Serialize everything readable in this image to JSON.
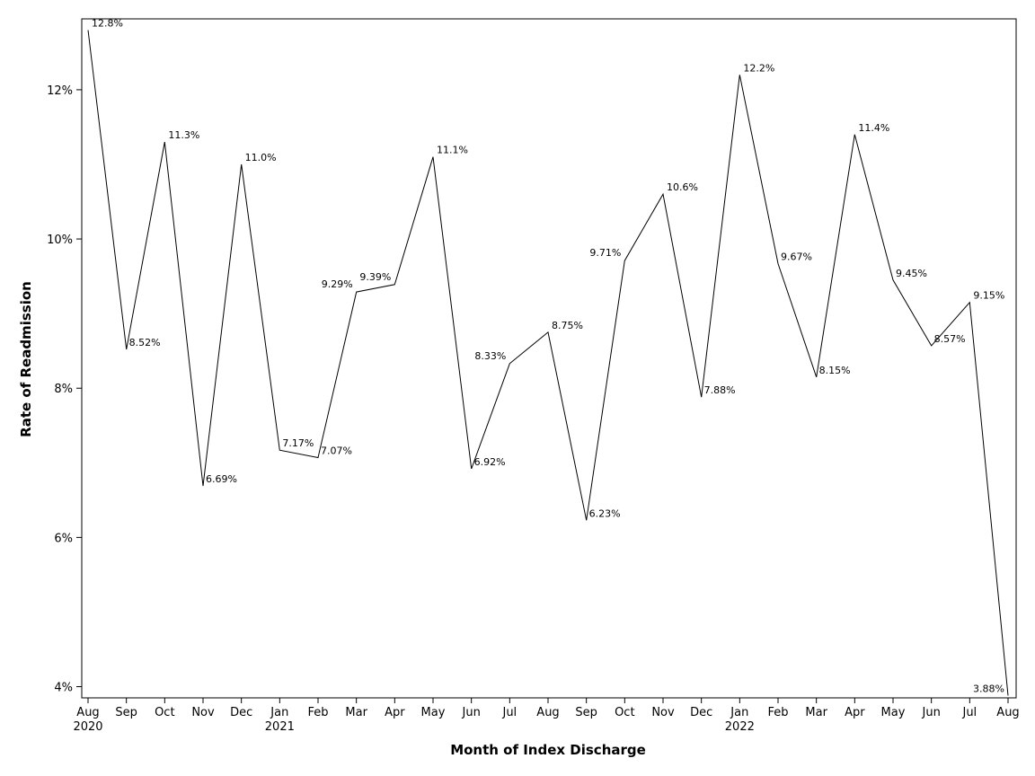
{
  "chart_data": {
    "type": "line",
    "xlabel": "Month of Index Discharge",
    "ylabel": "Rate of Readmission",
    "ylim": [
      3.85,
      12.95
    ],
    "yticks": [
      4,
      6,
      8,
      10,
      12
    ],
    "ytick_labels": [
      "4%",
      "6%",
      "8%",
      "10%",
      "12%"
    ],
    "grid": false,
    "legend": "none",
    "line_color": "#000000",
    "x": [
      "2020-08",
      "2020-09",
      "2020-10",
      "2020-11",
      "2020-12",
      "2021-01",
      "2021-02",
      "2021-03",
      "2021-04",
      "2021-05",
      "2021-06",
      "2021-07",
      "2021-08",
      "2021-09",
      "2021-10",
      "2021-11",
      "2021-12",
      "2022-01",
      "2022-02",
      "2022-03",
      "2022-04",
      "2022-05",
      "2022-06",
      "2022-07",
      "2022-08"
    ],
    "x_tick_labels": [
      "Aug",
      "Sep",
      "Oct",
      "Nov",
      "Dec",
      "Jan",
      "Feb",
      "Mar",
      "Apr",
      "May",
      "Jun",
      "Jul",
      "Aug",
      "Sep",
      "Oct",
      "Nov",
      "Dec",
      "Jan",
      "Feb",
      "Mar",
      "Apr",
      "May",
      "Jun",
      "Jul",
      "Aug"
    ],
    "x_year_labels": [
      "2020",
      "",
      "",
      "",
      "",
      "2021",
      "",
      "",
      "",
      "",
      "",
      "",
      "",
      "",
      "",
      "",
      "",
      "2022",
      "",
      "",
      "",
      "",
      "",
      "",
      ""
    ],
    "values": [
      12.8,
      8.52,
      11.3,
      6.69,
      11.0,
      7.17,
      7.07,
      9.29,
      9.39,
      11.1,
      6.92,
      8.33,
      8.75,
      6.23,
      9.71,
      10.6,
      7.88,
      12.2,
      9.67,
      8.15,
      11.4,
      9.45,
      8.57,
      9.15,
      3.88
    ],
    "data_labels": [
      "12.8%",
      "8.52%",
      "11.3%",
      "6.69%",
      "11.0%",
      "7.17%",
      "7.07%",
      "9.29%",
      "9.39%",
      "11.1%",
      "6.92%",
      "8.33%",
      "8.75%",
      "6.23%",
      "9.71%",
      "10.6%",
      "7.88%",
      "12.2%",
      "9.67%",
      "8.15%",
      "11.4%",
      "9.45%",
      "8.57%",
      "9.15%",
      "3.88%"
    ]
  }
}
